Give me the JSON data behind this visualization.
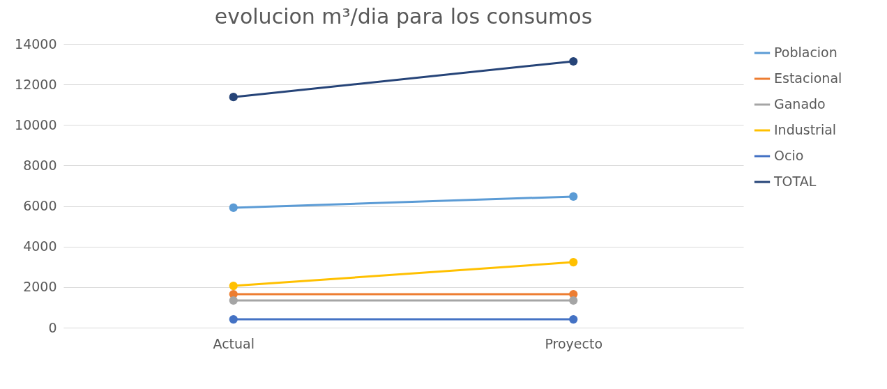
{
  "chart_data": {
    "type": "line",
    "title": "evolucion m³/dia para los consumos",
    "categories": [
      "Actual",
      "Proyecto"
    ],
    "series": [
      {
        "name": "Poblacion",
        "color": "#5b9bd5",
        "values": [
          5920,
          6470
        ]
      },
      {
        "name": "Estacional",
        "color": "#ed7d31",
        "values": [
          1650,
          1650
        ]
      },
      {
        "name": "Ganado",
        "color": "#a5a5a5",
        "values": [
          1340,
          1340
        ]
      },
      {
        "name": "Industrial",
        "color": "#ffc000",
        "values": [
          2060,
          3230
        ]
      },
      {
        "name": "Ocio",
        "color": "#4472c4",
        "values": [
          410,
          410
        ]
      },
      {
        "name": "TOTAL",
        "color": "#264478",
        "values": [
          11380,
          13140
        ]
      }
    ],
    "ylim": [
      0,
      14000
    ],
    "yticks": [
      0,
      2000,
      4000,
      6000,
      8000,
      10000,
      12000,
      14000
    ],
    "grid": "y",
    "legend": "right",
    "marker": "circle",
    "line_style": "solid"
  }
}
